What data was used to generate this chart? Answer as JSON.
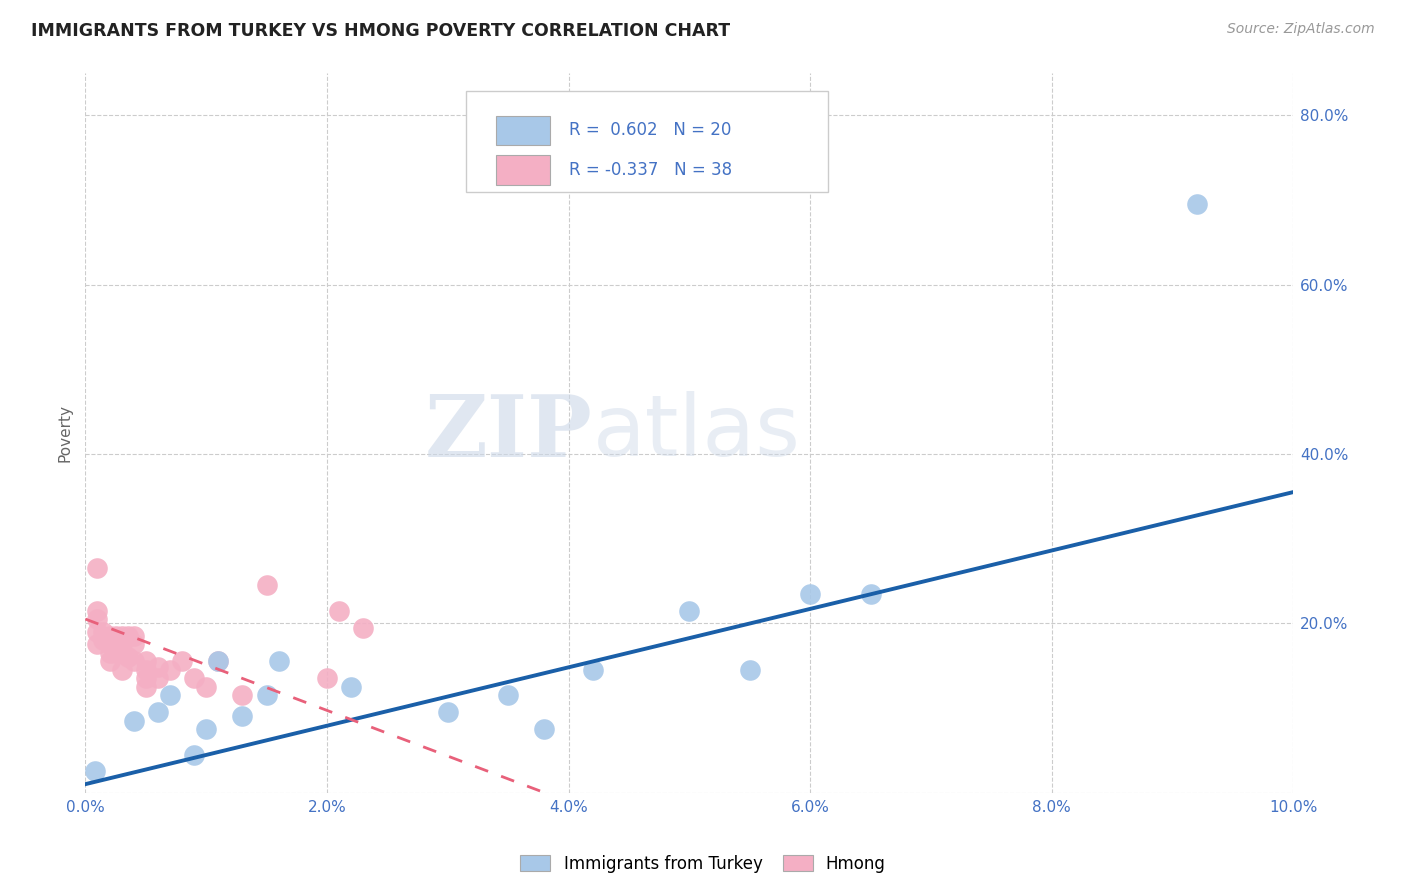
{
  "title": "IMMIGRANTS FROM TURKEY VS HMONG POVERTY CORRELATION CHART",
  "source": "Source: ZipAtlas.com",
  "ylabel": "Poverty",
  "x_min": 0.0,
  "x_max": 0.1,
  "y_min": 0.0,
  "y_max": 0.85,
  "y_ticks": [
    0.0,
    0.2,
    0.4,
    0.6,
    0.8
  ],
  "y_tick_labels": [
    "",
    "20.0%",
    "40.0%",
    "60.0%",
    "80.0%"
  ],
  "x_ticks": [
    0.0,
    0.02,
    0.04,
    0.06,
    0.08,
    0.1
  ],
  "x_tick_labels": [
    "0.0%",
    "2.0%",
    "4.0%",
    "6.0%",
    "8.0%",
    "10.0%"
  ],
  "turkey_color": "#a8c8e8",
  "hmong_color": "#f4afc4",
  "turkey_line_color": "#1a5fa8",
  "hmong_line_color": "#e8607a",
  "turkey_R": "0.602",
  "turkey_N": "20",
  "hmong_R": "-0.337",
  "hmong_N": "38",
  "legend_turkey": "Immigrants from Turkey",
  "legend_hmong": "Hmong",
  "watermark_zip": "ZIP",
  "watermark_atlas": "atlas",
  "grid_color": "#cccccc",
  "background_color": "#ffffff",
  "turkey_points_x": [
    0.0008,
    0.004,
    0.006,
    0.007,
    0.009,
    0.01,
    0.011,
    0.013,
    0.015,
    0.016,
    0.022,
    0.03,
    0.035,
    0.038,
    0.042,
    0.05,
    0.055,
    0.06,
    0.065,
    0.092
  ],
  "turkey_points_y": [
    0.025,
    0.085,
    0.095,
    0.115,
    0.045,
    0.075,
    0.155,
    0.09,
    0.115,
    0.155,
    0.125,
    0.095,
    0.115,
    0.075,
    0.145,
    0.215,
    0.145,
    0.235,
    0.235,
    0.695
  ],
  "hmong_points_x": [
    0.001,
    0.001,
    0.001,
    0.001,
    0.001,
    0.0015,
    0.0015,
    0.002,
    0.002,
    0.002,
    0.002,
    0.0025,
    0.0025,
    0.003,
    0.003,
    0.003,
    0.003,
    0.0035,
    0.0035,
    0.004,
    0.004,
    0.004,
    0.005,
    0.005,
    0.005,
    0.005,
    0.006,
    0.006,
    0.007,
    0.008,
    0.009,
    0.01,
    0.011,
    0.013,
    0.015,
    0.02,
    0.021,
    0.023
  ],
  "hmong_points_y": [
    0.265,
    0.215,
    0.205,
    0.19,
    0.175,
    0.19,
    0.18,
    0.185,
    0.175,
    0.165,
    0.155,
    0.185,
    0.165,
    0.185,
    0.175,
    0.165,
    0.145,
    0.185,
    0.16,
    0.185,
    0.175,
    0.155,
    0.155,
    0.145,
    0.135,
    0.125,
    0.148,
    0.135,
    0.145,
    0.155,
    0.135,
    0.125,
    0.155,
    0.115,
    0.245,
    0.135,
    0.215,
    0.195
  ],
  "turkey_line_x": [
    0.0,
    0.1
  ],
  "turkey_line_y": [
    0.01,
    0.355
  ],
  "hmong_line_x": [
    0.0,
    0.038
  ],
  "hmong_line_y": [
    0.205,
    0.0
  ]
}
